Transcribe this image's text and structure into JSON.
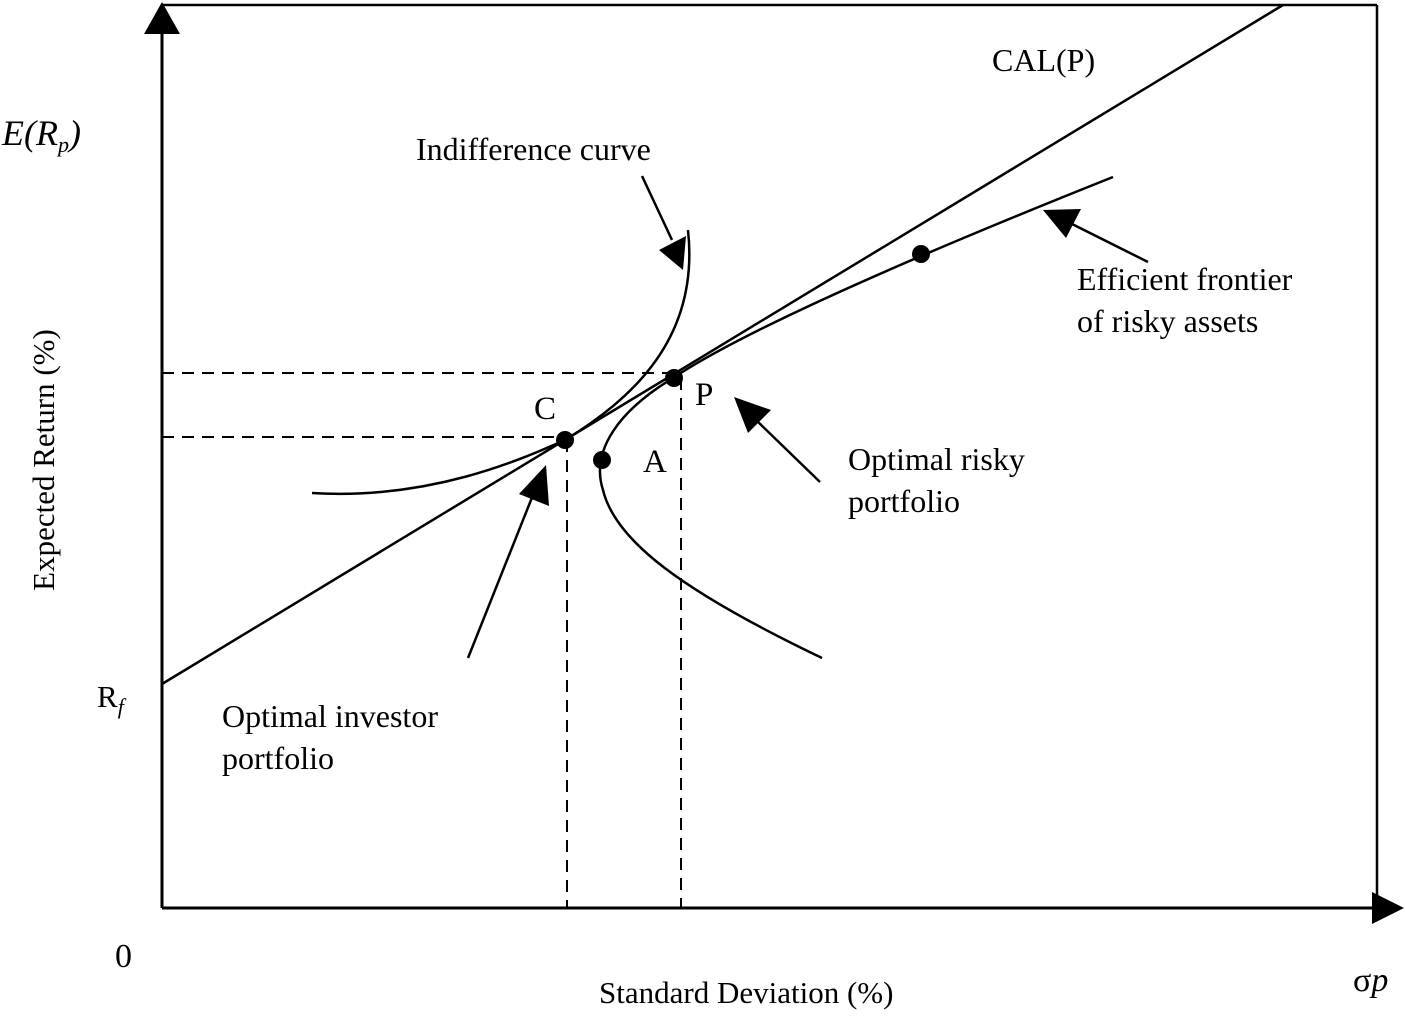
{
  "axes": {
    "y_symbol_prefix": "E(R",
    "y_symbol_sub": "p",
    "y_symbol_suffix": ")",
    "y_label": "Expected Return (%)",
    "x_label": "Standard Deviation (%)",
    "x_symbol_main": "σ",
    "x_symbol_sub": "p",
    "origin": "0",
    "rf_main": "R",
    "rf_sub": "f"
  },
  "labels": {
    "cal": "CAL(P)",
    "indifference_curve": "Indifference curve",
    "efficient_frontier": "Efficient frontier\nof risky assets",
    "point_c": "C",
    "point_p": "P",
    "point_a": "A",
    "optimal_risky": "Optimal risky\nportfolio",
    "optimal_investor": "Optimal investor\nportfolio"
  },
  "colors": {
    "line": "#000000",
    "background": "#ffffff"
  }
}
